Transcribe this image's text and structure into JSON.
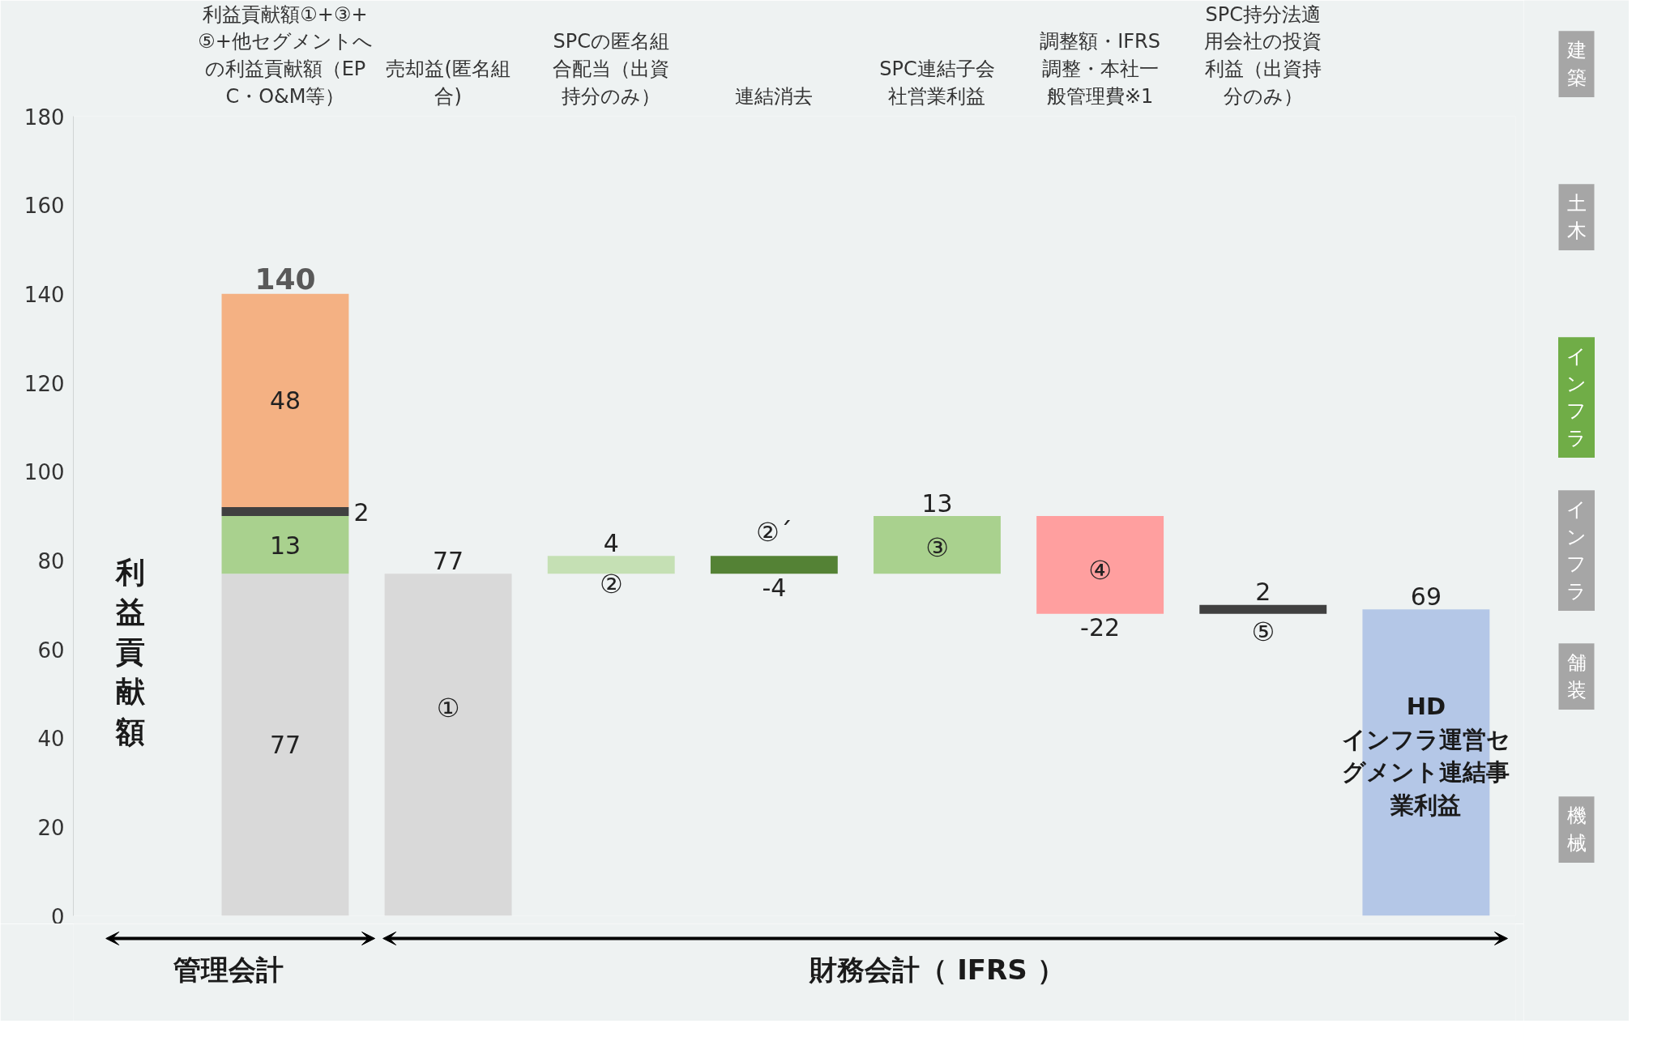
{
  "chart_data": {
    "type": "bar",
    "categories": [
      "利益貢献額①+③+⑤+他セグメントへの利益貢献額（EPC・O&M等）",
      "売却益(匿名組合)",
      "SPCの匿名組合配当（出資持分のみ）",
      "連結消去",
      "SPC連結子会社営業利益",
      "調整額・IFRS調整・本社一般管理費※1",
      "SPC持分法適用会社の投資利益（出資持分のみ）",
      null
    ],
    "series": [
      {
        "color": "#d9d9d9",
        "values": [
          77,
          77,
          null,
          null,
          null,
          null,
          null,
          null
        ],
        "base": [
          0,
          0,
          null,
          null,
          null,
          null,
          null,
          null
        ],
        "value_labels": [
          "77",
          "77",
          null,
          null,
          null,
          null,
          null,
          null
        ]
      },
      {
        "color": "#a9d18e",
        "values": [
          13,
          null,
          null,
          null,
          13,
          null,
          null,
          null
        ],
        "base": [
          77,
          null,
          null,
          null,
          77,
          null,
          null,
          null
        ],
        "value_labels": [
          "13",
          null,
          null,
          null,
          "13",
          null,
          null,
          null
        ]
      },
      {
        "color": "#404040",
        "values": [
          2,
          null,
          null,
          null,
          null,
          null,
          2,
          null
        ],
        "base": [
          90,
          null,
          null,
          null,
          null,
          null,
          68,
          null
        ],
        "value_labels": [
          "2",
          null,
          null,
          null,
          null,
          null,
          "2",
          null
        ]
      },
      {
        "color": "#f4b183",
        "values": [
          48,
          null,
          null,
          null,
          null,
          null,
          null,
          null
        ],
        "base": [
          92,
          null,
          null,
          null,
          null,
          null,
          null,
          null
        ],
        "value_labels": [
          "48",
          null,
          null,
          null,
          null,
          null,
          null,
          null
        ]
      },
      {
        "color": "#c5e0b4",
        "values": [
          null,
          null,
          4,
          null,
          null,
          null,
          null,
          null
        ],
        "base": [
          null,
          null,
          77,
          null,
          null,
          null,
          null,
          null
        ],
        "value_labels": [
          null,
          null,
          "4",
          null,
          null,
          null,
          null,
          null
        ]
      },
      {
        "color": "#548235",
        "values": [
          null,
          null,
          null,
          -4,
          null,
          null,
          null,
          null
        ],
        "base": [
          null,
          null,
          null,
          81,
          null,
          null,
          null,
          null
        ],
        "value_labels": [
          null,
          null,
          null,
          "-4",
          null,
          null,
          null,
          null
        ]
      },
      {
        "color": "#ff9f9f",
        "values": [
          null,
          null,
          null,
          null,
          null,
          -22,
          null,
          null
        ],
        "base": [
          null,
          null,
          null,
          null,
          null,
          90,
          null,
          null
        ],
        "value_labels": [
          null,
          null,
          null,
          null,
          null,
          "-22",
          null,
          null
        ]
      },
      {
        "color": "#b4c7e7",
        "values": [
          null,
          null,
          null,
          null,
          null,
          null,
          null,
          69
        ],
        "base": [
          null,
          null,
          null,
          null,
          null,
          null,
          null,
          0
        ],
        "value_labels": [
          null,
          null,
          null,
          null,
          null,
          null,
          null,
          "69"
        ]
      }
    ],
    "totals": [
      "140",
      null,
      null,
      null,
      null,
      null,
      null,
      null
    ],
    "ylim": [
      0,
      180
    ],
    "yticks": [
      0,
      20,
      40,
      60,
      80,
      100,
      120,
      140,
      160,
      180
    ],
    "grid": false,
    "annotations": [
      "①",
      "②",
      "②´",
      "③",
      "④",
      "⑤",
      "HD インフラ運営セグメント連結事業利益",
      "利益貢献額",
      "管理会計",
      "財務会計（ IFRS ）",
      "建築",
      "土木",
      "インフラ",
      "インフラ",
      "舗装",
      "機械"
    ]
  }
}
